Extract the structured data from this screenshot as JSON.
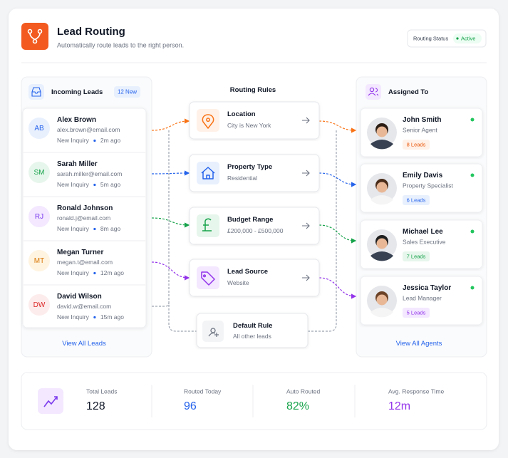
{
  "header": {
    "title": "Lead Routing",
    "subtitle": "Automatically route leads to the right person.",
    "status_label": "Routing Status",
    "status": "Active"
  },
  "incoming": {
    "title": "Incoming Leads",
    "badge": "12 New",
    "leads": [
      {
        "initials": "AB",
        "name": "Alex Brown",
        "email": "alex.brown@email.com",
        "status": "New Inquiry",
        "time": "2m ago"
      },
      {
        "initials": "SM",
        "name": "Sarah Miller",
        "email": "sarah.miller@email.com",
        "status": "New Inquiry",
        "time": "5m ago"
      },
      {
        "initials": "RJ",
        "name": "Ronald Johnson",
        "email": "ronald.j@email.com",
        "status": "New Inquiry",
        "time": "8m ago"
      },
      {
        "initials": "MT",
        "name": "Megan Turner",
        "email": "megan.t@email.com",
        "status": "New Inquiry",
        "time": "12m ago"
      },
      {
        "initials": "DW",
        "name": "David Wilson",
        "email": "david.w@email.com",
        "status": "New Inquiry",
        "time": "15m ago"
      }
    ],
    "link": "View All Leads"
  },
  "rules": {
    "title": "Routing Rules",
    "items": [
      {
        "title": "Location",
        "detail": "City is New York"
      },
      {
        "title": "Property Type",
        "detail": "Residential"
      },
      {
        "title": "Budget Range",
        "detail": "£200,000 - £500,000"
      },
      {
        "title": "Lead Source",
        "detail": "Website"
      }
    ],
    "default": {
      "title": "Default Rule",
      "detail": "All other leads"
    }
  },
  "agents": {
    "title": "Assigned To",
    "items": [
      {
        "name": "John Smith",
        "role": "Senior Agent",
        "leads": "8 Leads"
      },
      {
        "name": "Emily Davis",
        "role": "Property Specialist",
        "leads": "6 Leads"
      },
      {
        "name": "Michael Lee",
        "role": "Sales Executive",
        "leads": "7 Leads"
      },
      {
        "name": "Jessica Taylor",
        "role": "Lead Manager",
        "leads": "5 Leads"
      }
    ],
    "link": "View All Agents"
  },
  "stats": [
    {
      "label": "Total Leads",
      "value": "128"
    },
    {
      "label": "Routed Today",
      "value": "96"
    },
    {
      "label": "Auto Routed",
      "value": "82%"
    },
    {
      "label": "Avg. Response Time",
      "value": "12m"
    }
  ]
}
